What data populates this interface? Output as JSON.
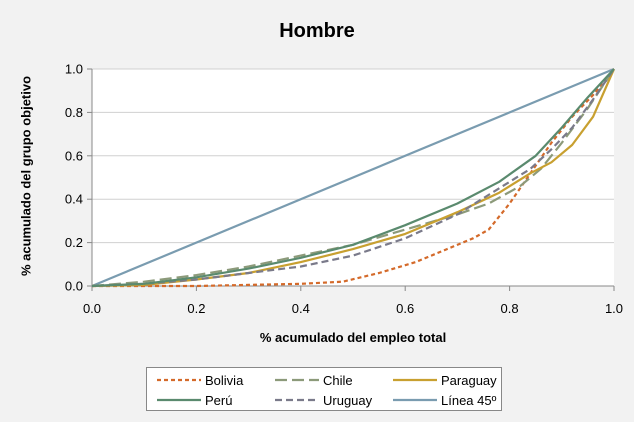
{
  "chart_data": {
    "type": "line",
    "title": "Hombre",
    "xlabel": "% acumulado del empleo total",
    "ylabel": "% acumulado del grupo objetivo",
    "xlim": [
      0,
      1
    ],
    "ylim": [
      0,
      1
    ],
    "x_ticks": [
      "0.0",
      "0.2",
      "0.4",
      "0.6",
      "0.8",
      "1.0"
    ],
    "y_ticks": [
      "0.0",
      "0.2",
      "0.4",
      "0.6",
      "0.8",
      "1.0"
    ],
    "grid": "horizontal",
    "legend_position": "bottom",
    "series": [
      {
        "name": "Bolivia",
        "color": "#d46a2a",
        "dash": "short-dash",
        "points": [
          [
            0,
            0
          ],
          [
            0.1,
            0
          ],
          [
            0.2,
            0
          ],
          [
            0.3,
            0.005
          ],
          [
            0.4,
            0.01
          ],
          [
            0.48,
            0.02
          ],
          [
            0.55,
            0.06
          ],
          [
            0.62,
            0.11
          ],
          [
            0.68,
            0.17
          ],
          [
            0.73,
            0.22
          ],
          [
            0.76,
            0.26
          ],
          [
            0.8,
            0.38
          ],
          [
            0.84,
            0.52
          ],
          [
            0.88,
            0.66
          ],
          [
            0.92,
            0.78
          ],
          [
            0.96,
            0.88
          ],
          [
            1,
            1
          ]
        ]
      },
      {
        "name": "Chile",
        "color": "#8c9a7a",
        "dash": "long-dash",
        "points": [
          [
            0,
            0
          ],
          [
            0.1,
            0.02
          ],
          [
            0.2,
            0.05
          ],
          [
            0.3,
            0.09
          ],
          [
            0.4,
            0.14
          ],
          [
            0.5,
            0.19
          ],
          [
            0.6,
            0.26
          ],
          [
            0.7,
            0.33
          ],
          [
            0.76,
            0.38
          ],
          [
            0.82,
            0.46
          ],
          [
            0.86,
            0.54
          ],
          [
            0.9,
            0.66
          ],
          [
            0.95,
            0.82
          ],
          [
            1,
            1
          ]
        ]
      },
      {
        "name": "Paraguay",
        "color": "#c8a030",
        "dash": "solid",
        "points": [
          [
            0,
            0
          ],
          [
            0.1,
            0.005
          ],
          [
            0.2,
            0.03
          ],
          [
            0.3,
            0.06
          ],
          [
            0.4,
            0.11
          ],
          [
            0.5,
            0.17
          ],
          [
            0.6,
            0.24
          ],
          [
            0.7,
            0.34
          ],
          [
            0.78,
            0.43
          ],
          [
            0.84,
            0.52
          ],
          [
            0.88,
            0.57
          ],
          [
            0.92,
            0.65
          ],
          [
            0.96,
            0.78
          ],
          [
            1,
            1
          ]
        ]
      },
      {
        "name": "Perú",
        "color": "#5a8a6e",
        "dash": "solid",
        "points": [
          [
            0,
            0
          ],
          [
            0.1,
            0.01
          ],
          [
            0.2,
            0.04
          ],
          [
            0.3,
            0.08
          ],
          [
            0.4,
            0.13
          ],
          [
            0.5,
            0.19
          ],
          [
            0.6,
            0.28
          ],
          [
            0.7,
            0.38
          ],
          [
            0.78,
            0.48
          ],
          [
            0.85,
            0.6
          ],
          [
            0.9,
            0.73
          ],
          [
            0.95,
            0.87
          ],
          [
            1,
            1
          ]
        ]
      },
      {
        "name": "Uruguay",
        "color": "#7a7a8a",
        "dash": "dash",
        "points": [
          [
            0,
            0
          ],
          [
            0.1,
            0.01
          ],
          [
            0.2,
            0.03
          ],
          [
            0.3,
            0.06
          ],
          [
            0.4,
            0.09
          ],
          [
            0.5,
            0.14
          ],
          [
            0.6,
            0.22
          ],
          [
            0.7,
            0.33
          ],
          [
            0.78,
            0.45
          ],
          [
            0.84,
            0.54
          ],
          [
            0.88,
            0.63
          ],
          [
            0.92,
            0.73
          ],
          [
            0.96,
            0.86
          ],
          [
            1,
            1
          ]
        ]
      },
      {
        "name": "Línea 45º",
        "color": "#7a9cb0",
        "dash": "solid",
        "points": [
          [
            0,
            0
          ],
          [
            1,
            1
          ]
        ]
      }
    ]
  }
}
